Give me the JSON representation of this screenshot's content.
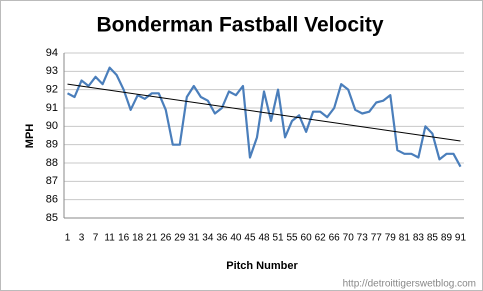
{
  "chart_data": {
    "type": "line",
    "title": "Bonderman Fastball Velocity",
    "x_label": "Pitch Number",
    "y_label": "MPH",
    "watermark": "http://detroittigerswetblog.com",
    "categories": [
      "1",
      null,
      "3",
      null,
      "7",
      null,
      "11",
      null,
      "16",
      null,
      "18",
      null,
      "21",
      null,
      "26",
      null,
      "29",
      null,
      "31",
      null,
      "34",
      null,
      "36",
      null,
      "40",
      null,
      "45",
      null,
      "48",
      null,
      "51",
      null,
      "55",
      null,
      "60",
      null,
      "62",
      null,
      "66",
      null,
      "70",
      null,
      "73",
      null,
      "77",
      null,
      "79",
      null,
      "81",
      null,
      "83",
      null,
      "85",
      null,
      "89",
      null,
      "91"
    ],
    "series": [
      {
        "color": "#4a7ebb",
        "values": [
          91.8,
          91.6,
          92.5,
          92.2,
          92.7,
          92.3,
          93.2,
          92.8,
          92.0,
          90.9,
          91.7,
          91.5,
          91.8,
          91.8,
          90.9,
          89.0,
          89.0,
          91.6,
          92.2,
          91.6,
          91.4,
          90.7,
          91.0,
          91.9,
          91.7,
          92.2,
          88.3,
          89.4,
          91.9,
          90.3,
          92.0,
          89.4,
          90.3,
          90.6,
          89.7,
          90.8,
          90.8,
          90.5,
          91.0,
          92.3,
          92.0,
          90.9,
          90.7,
          90.8,
          91.3,
          91.4,
          91.7,
          88.7,
          88.5,
          88.5,
          88.3,
          90.0,
          89.6,
          88.2,
          88.5,
          88.5,
          87.8
        ]
      }
    ],
    "trendline": {
      "color": "#000000",
      "values": [
        92.3,
        89.2
      ]
    },
    "ylim": [
      85,
      94
    ],
    "yticks": [
      85,
      86,
      87,
      88,
      89,
      90,
      91,
      92,
      93,
      94
    ],
    "grid": true
  }
}
